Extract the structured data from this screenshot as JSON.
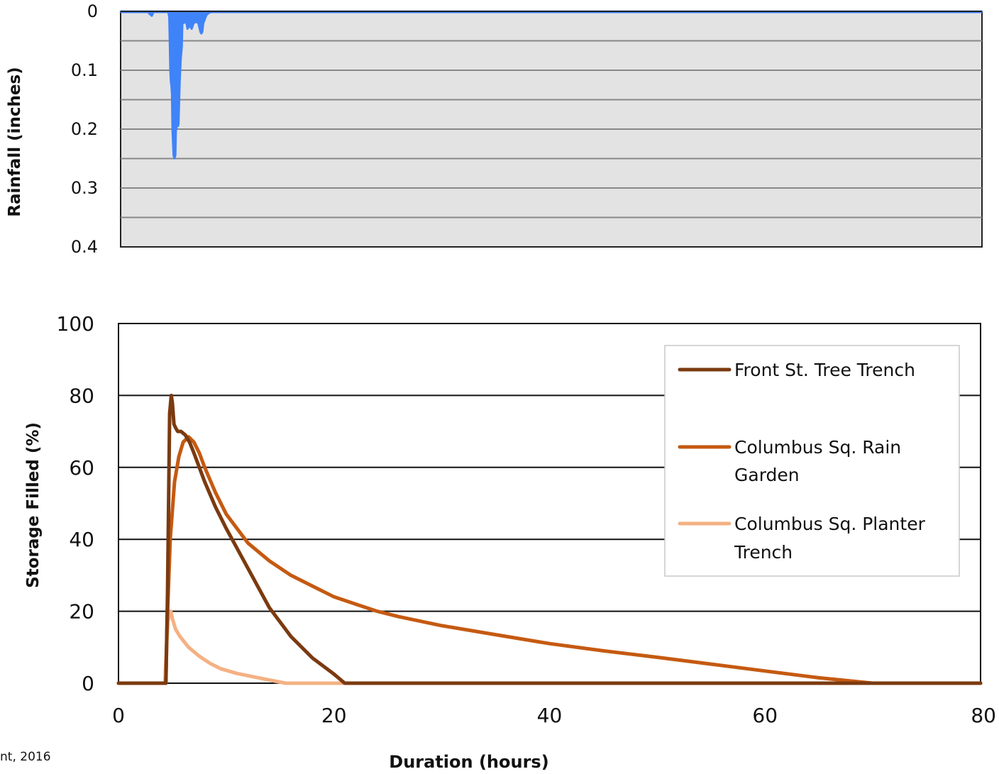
{
  "chart_data": [
    {
      "type": "area",
      "ylabel": "Rainfall (inches)",
      "ylim": [
        0,
        0.4
      ],
      "y_reversed": true,
      "y_ticks": [
        "0",
        "0.1",
        "0.2",
        "0.3",
        "0.4"
      ],
      "xlim": [
        0,
        80
      ],
      "grid": true,
      "colors": {
        "series": "#3F83F8",
        "background": "#E3E3E3",
        "grid": "#888888"
      },
      "series": [
        {
          "x": [
            0,
            2.5,
            2.7,
            2.9,
            3.1,
            4.4,
            4.5,
            4.55,
            4.6,
            4.65,
            4.7,
            4.75,
            4.8,
            4.9,
            5.0,
            5.1,
            5.15,
            5.2,
            5.25,
            5.3,
            5.35,
            5.4,
            5.5,
            5.6,
            5.7,
            5.75,
            5.8,
            5.9,
            6.0,
            6.1,
            6.2,
            6.4,
            6.6,
            6.8,
            7.0,
            7.2,
            7.4,
            7.5,
            7.6,
            7.7,
            7.8,
            7.9,
            8.0,
            8.2,
            8.5,
            80
          ],
          "values": [
            0,
            0,
            0.005,
            0.008,
            0,
            0,
            0.01,
            0.05,
            0.1,
            0.12,
            0.125,
            0.14,
            0.2,
            0.245,
            0.25,
            0.245,
            0.2,
            0.2,
            0.19,
            0.19,
            0.195,
            0.19,
            0.12,
            0.08,
            0.06,
            0.02,
            0.015,
            0.02,
            0.015,
            0.02,
            0.03,
            0.025,
            0.03,
            0.02,
            0.018,
            0.02,
            0.035,
            0.038,
            0.035,
            0.02,
            0.015,
            0.01,
            0.006,
            0.003,
            0.001,
            0
          ]
        }
      ]
    },
    {
      "type": "line",
      "xlabel": "Duration (hours)",
      "ylabel": "Storage Filled (%)",
      "xlim": [
        0,
        80
      ],
      "ylim": [
        0,
        100
      ],
      "x_ticks": [
        "0",
        "20",
        "40",
        "60",
        "80"
      ],
      "y_ticks": [
        "0",
        "20",
        "40",
        "60",
        "80",
        "100"
      ],
      "grid": true,
      "legend": "top-right",
      "series": [
        {
          "name": "Front St. Tree Trench",
          "color": "#7B3A10",
          "x": [
            0,
            4.4,
            4.55,
            4.75,
            4.9,
            5.0,
            5.15,
            5.3,
            5.5,
            5.8,
            6.2,
            6.6,
            7.0,
            8.0,
            9.0,
            10.0,
            12.0,
            14.0,
            16.0,
            18.0,
            20.0,
            21.0,
            80
          ],
          "values": [
            0,
            0,
            25,
            75,
            80,
            78,
            72,
            71,
            70,
            70,
            69,
            67,
            64,
            56,
            49,
            43,
            32,
            21,
            13,
            7,
            2.5,
            0,
            0
          ]
        },
        {
          "name": "Columbus Sq. Rain Garden",
          "color": "#C55A11",
          "x": [
            0,
            4.4,
            4.5,
            4.8,
            5.2,
            5.6,
            6.0,
            6.5,
            7.0,
            7.5,
            8.0,
            9.0,
            10.0,
            12.0,
            14.0,
            16.0,
            18.0,
            20.0,
            22.0,
            24.0,
            26.0,
            30.0,
            35.0,
            40.0,
            45.0,
            50.0,
            55.0,
            60.0,
            65.0,
            70.0,
            80
          ],
          "values": [
            0,
            0,
            15,
            40,
            56,
            63,
            67,
            68.5,
            67,
            64,
            60,
            53,
            47,
            39,
            34,
            30,
            27,
            24,
            22,
            20,
            18.5,
            16,
            13.5,
            11,
            9,
            7.2,
            5.3,
            3.4,
            1.5,
            0,
            0
          ]
        },
        {
          "name": "Columbus Sq. Planter Trench",
          "color": "#F4B183",
          "x": [
            0,
            4.3,
            4.45,
            4.6,
            4.75,
            4.85,
            5.0,
            5.3,
            5.7,
            6.5,
            7.5,
            8.5,
            9.5,
            11.0,
            13.0,
            14.5,
            15.5,
            80
          ],
          "values": [
            0,
            0,
            10,
            17,
            20,
            20,
            18,
            15,
            13,
            10,
            7.5,
            5.5,
            4,
            2.7,
            1.5,
            0.6,
            0,
            0
          ]
        }
      ]
    }
  ],
  "source_note": "nt, 2016"
}
